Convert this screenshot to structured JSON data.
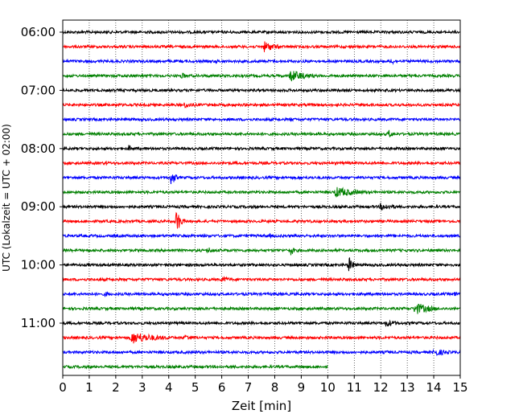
{
  "chart_data": {
    "type": "line",
    "title": "",
    "xlabel": "Zeit  [min]",
    "ylabel": "UTC (Lokalzeit = UTC + 02:00)",
    "xlim": [
      0,
      15
    ],
    "x_ticks": [
      "0",
      "1",
      "2",
      "3",
      "4",
      "5",
      "6",
      "7",
      "8",
      "9",
      "10",
      "11",
      "12",
      "13",
      "14",
      "15"
    ],
    "y_tick_labels": [
      "06:00",
      "07:00",
      "08:00",
      "09:00",
      "10:00",
      "11:00"
    ],
    "grid": "vertical dotted lines at each minute",
    "trace_interval_min": 15,
    "color_cycle": [
      "#000000",
      "#ff0000",
      "#0000ff",
      "#008000"
    ],
    "traces": [
      {
        "start": "06:00",
        "end_min": 15,
        "events": [
          {
            "t": 1.3,
            "amp": 2
          },
          {
            "t": 13.1,
            "amp": 2
          }
        ]
      },
      {
        "start": "06:15",
        "end_min": 15,
        "events": [
          {
            "t": 7.6,
            "amp": 7,
            "dur": 0.8
          },
          {
            "t": 1.5,
            "amp": 2
          }
        ]
      },
      {
        "start": "06:30",
        "end_min": 15,
        "events": [
          {
            "t": 5.8,
            "amp": 3
          },
          {
            "t": 12.4,
            "amp": 5
          }
        ]
      },
      {
        "start": "06:45",
        "end_min": 15,
        "events": [
          {
            "t": 4.5,
            "amp": 5
          },
          {
            "t": 8.6,
            "amp": 8,
            "dur": 1.0
          },
          {
            "t": 14.0,
            "amp": 2
          }
        ]
      },
      {
        "start": "07:00",
        "end_min": 15,
        "events": [
          {
            "t": 6.8,
            "amp": 1
          }
        ]
      },
      {
        "start": "07:15",
        "end_min": 15,
        "events": [
          {
            "t": 4.6,
            "amp": 4,
            "dur": 0.8
          },
          {
            "t": 8.5,
            "amp": 2
          }
        ]
      },
      {
        "start": "07:30",
        "end_min": 15,
        "events": [
          {
            "t": 8.6,
            "amp": 3
          },
          {
            "t": 12.5,
            "amp": 1
          }
        ]
      },
      {
        "start": "07:45",
        "end_min": 15,
        "events": [
          {
            "t": 1.5,
            "amp": 2
          },
          {
            "t": 12.3,
            "amp": 6
          }
        ]
      },
      {
        "start": "08:00",
        "end_min": 15,
        "events": [
          {
            "t": 2.5,
            "amp": 5
          },
          {
            "t": 6.8,
            "amp": 3
          },
          {
            "t": 14.0,
            "amp": 2
          }
        ]
      },
      {
        "start": "08:15",
        "end_min": 15,
        "events": [
          {
            "t": 1.6,
            "amp": 3
          },
          {
            "t": 6.5,
            "amp": 2
          }
        ]
      },
      {
        "start": "08:30",
        "end_min": 15,
        "events": [
          {
            "t": 4.1,
            "amp": 11
          },
          {
            "t": 8.2,
            "amp": 2
          }
        ]
      },
      {
        "start": "08:45",
        "end_min": 15,
        "events": [
          {
            "t": 10.3,
            "amp": 7,
            "dur": 1.4
          },
          {
            "t": 4.6,
            "amp": 2
          }
        ]
      },
      {
        "start": "09:00",
        "end_min": 15,
        "events": [
          {
            "t": 12.0,
            "amp": 5,
            "dur": 1.0
          },
          {
            "t": 3.3,
            "amp": 2
          }
        ]
      },
      {
        "start": "09:15",
        "end_min": 15,
        "events": [
          {
            "t": 4.3,
            "amp": 16
          },
          {
            "t": 12.6,
            "amp": 1
          }
        ]
      },
      {
        "start": "09:30",
        "end_min": 15,
        "events": [
          {
            "t": 7.8,
            "amp": 3
          },
          {
            "t": 12.4,
            "amp": 1
          }
        ]
      },
      {
        "start": "09:45",
        "end_min": 15,
        "events": [
          {
            "t": 5.5,
            "amp": 5
          },
          {
            "t": 8.6,
            "amp": 7
          }
        ]
      },
      {
        "start": "10:00",
        "end_min": 15,
        "events": [
          {
            "t": 10.8,
            "amp": 11
          },
          {
            "t": 1.5,
            "amp": 2
          }
        ]
      },
      {
        "start": "10:15",
        "end_min": 15,
        "events": [
          {
            "t": 6.0,
            "amp": 4,
            "dur": 0.8
          },
          {
            "t": 14.2,
            "amp": 2
          }
        ]
      },
      {
        "start": "10:30",
        "end_min": 15,
        "events": [
          {
            "t": 1.6,
            "amp": 4
          },
          {
            "t": 8.1,
            "amp": 3
          },
          {
            "t": 14.8,
            "amp": 4
          }
        ]
      },
      {
        "start": "10:45",
        "end_min": 15,
        "events": [
          {
            "t": 13.3,
            "amp": 8,
            "dur": 1.0
          },
          {
            "t": 0.3,
            "amp": 2
          }
        ]
      },
      {
        "start": "11:00",
        "end_min": 15,
        "events": [
          {
            "t": 12.2,
            "amp": 5,
            "dur": 0.8
          },
          {
            "t": 3.1,
            "amp": 2
          }
        ]
      },
      {
        "start": "11:15",
        "end_min": 15,
        "events": [
          {
            "t": 2.6,
            "amp": 8,
            "dur": 1.6
          },
          {
            "t": 4.6,
            "amp": 4,
            "dur": 0.8
          }
        ]
      },
      {
        "start": "11:30",
        "end_min": 15,
        "events": [
          {
            "t": 14.0,
            "amp": 5,
            "dur": 1.0
          },
          {
            "t": 12.2,
            "amp": 3
          }
        ]
      },
      {
        "start": "11:45",
        "end_min": 10,
        "events": []
      }
    ]
  }
}
